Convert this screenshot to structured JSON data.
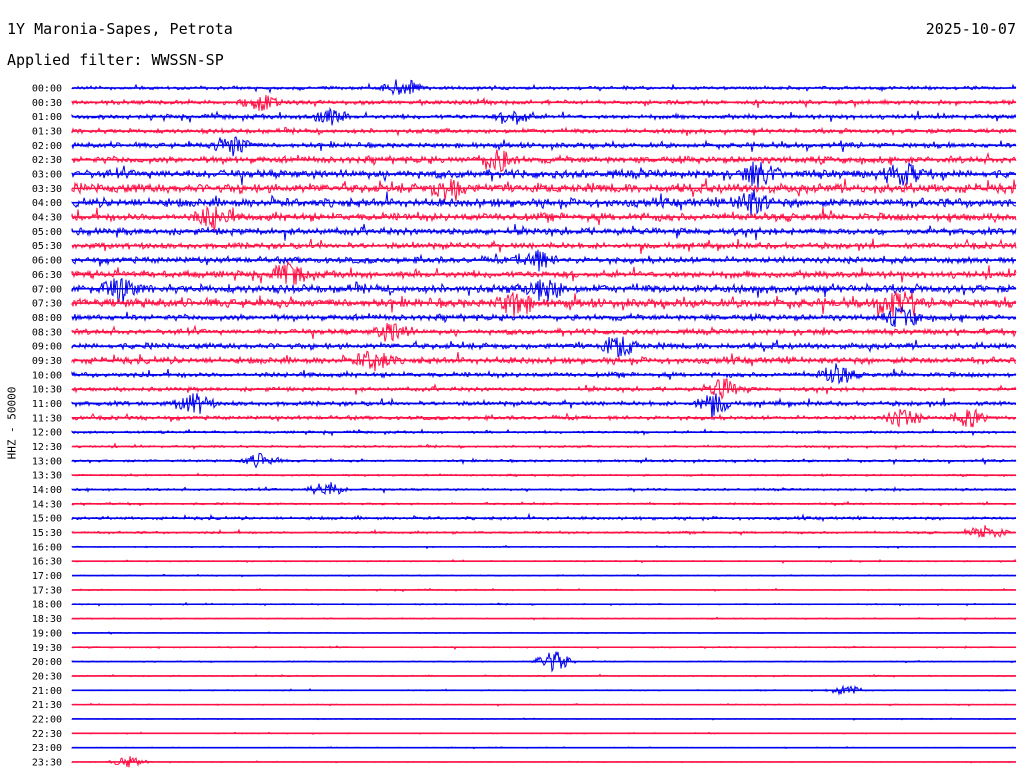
{
  "header": {
    "station": "1Y Maronia-Sapes, Petrota",
    "date": "2025-10-07",
    "filter": "Applied filter: WWSSN-SP",
    "channel_label": "HHZ - 50000"
  },
  "colors": {
    "even_rows": "#0000ee",
    "odd_rows": "#ff0f44",
    "background": "#ffffff"
  },
  "chart_data": {
    "type": "line",
    "title": "1Y Maronia-Sapes, Petrota",
    "ylabel": "HHZ - 50000",
    "row_labels": [
      "00:00",
      "00:30",
      "01:00",
      "01:30",
      "02:00",
      "02:30",
      "03:00",
      "03:30",
      "04:00",
      "04:30",
      "05:00",
      "05:30",
      "06:00",
      "06:30",
      "07:00",
      "07:30",
      "08:00",
      "08:30",
      "09:00",
      "09:30",
      "10:00",
      "10:30",
      "11:00",
      "11:30",
      "12:00",
      "12:30",
      "13:00",
      "13:30",
      "14:00",
      "14:30",
      "15:00",
      "15:30",
      "16:00",
      "16:30",
      "17:00",
      "17:30",
      "18:00",
      "18:30",
      "19:00",
      "19:30",
      "20:00",
      "20:30",
      "21:00",
      "21:30",
      "22:00",
      "22:30",
      "23:00",
      "23:30"
    ],
    "noise_level": [
      0.22,
      0.28,
      0.3,
      0.3,
      0.34,
      0.45,
      0.55,
      0.62,
      0.58,
      0.52,
      0.45,
      0.4,
      0.42,
      0.46,
      0.55,
      0.58,
      0.4,
      0.36,
      0.4,
      0.44,
      0.32,
      0.26,
      0.3,
      0.26,
      0.16,
      0.14,
      0.16,
      0.12,
      0.15,
      0.13,
      0.2,
      0.15,
      0.07,
      0.08,
      0.07,
      0.08,
      0.08,
      0.07,
      0.06,
      0.08,
      0.07,
      0.08,
      0.07,
      0.06,
      0.05,
      0.06,
      0.05,
      0.05
    ],
    "events": [
      {
        "row": 0,
        "x": 0.35,
        "amp": 1.1
      },
      {
        "row": 1,
        "x": 0.2,
        "amp": 0.9
      },
      {
        "row": 2,
        "x": 0.27,
        "amp": 0.9
      },
      {
        "row": 2,
        "x": 0.47,
        "amp": 0.8
      },
      {
        "row": 4,
        "x": 0.17,
        "amp": 1.2
      },
      {
        "row": 5,
        "x": 0.45,
        "amp": 1.3
      },
      {
        "row": 6,
        "x": 0.73,
        "amp": 1.3
      },
      {
        "row": 6,
        "x": 0.88,
        "amp": 1.2
      },
      {
        "row": 7,
        "x": 0.4,
        "amp": 1.3
      },
      {
        "row": 8,
        "x": 0.72,
        "amp": 1.3
      },
      {
        "row": 9,
        "x": 0.15,
        "amp": 1.2
      },
      {
        "row": 12,
        "x": 0.49,
        "amp": 1.2
      },
      {
        "row": 13,
        "x": 0.23,
        "amp": 1.2
      },
      {
        "row": 14,
        "x": 0.05,
        "amp": 1.2
      },
      {
        "row": 14,
        "x": 0.5,
        "amp": 1.3
      },
      {
        "row": 15,
        "x": 0.47,
        "amp": 1.3
      },
      {
        "row": 15,
        "x": 0.87,
        "amp": 1.6
      },
      {
        "row": 16,
        "x": 0.88,
        "amp": 1.1
      },
      {
        "row": 17,
        "x": 0.34,
        "amp": 1.2
      },
      {
        "row": 18,
        "x": 0.58,
        "amp": 1.1
      },
      {
        "row": 19,
        "x": 0.32,
        "amp": 1.2
      },
      {
        "row": 20,
        "x": 0.81,
        "amp": 1.1
      },
      {
        "row": 21,
        "x": 0.69,
        "amp": 1.1
      },
      {
        "row": 22,
        "x": 0.13,
        "amp": 1.1
      },
      {
        "row": 22,
        "x": 0.68,
        "amp": 1.2
      },
      {
        "row": 23,
        "x": 0.88,
        "amp": 1.0
      },
      {
        "row": 23,
        "x": 0.95,
        "amp": 1.0
      },
      {
        "row": 26,
        "x": 0.2,
        "amp": 0.8
      },
      {
        "row": 28,
        "x": 0.27,
        "amp": 0.9
      },
      {
        "row": 31,
        "x": 0.97,
        "amp": 0.9
      },
      {
        "row": 40,
        "x": 0.51,
        "amp": 1.3
      },
      {
        "row": 42,
        "x": 0.82,
        "amp": 0.6
      },
      {
        "row": 47,
        "x": 0.06,
        "amp": 0.6
      }
    ]
  }
}
